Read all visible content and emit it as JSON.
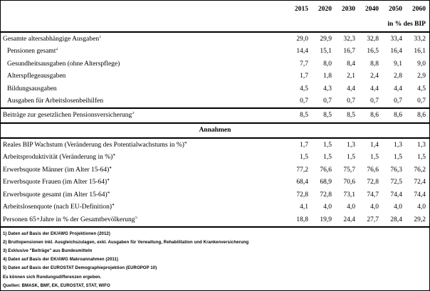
{
  "header": {
    "years": [
      "2015",
      "2020",
      "2030",
      "2040",
      "2050",
      "2060"
    ],
    "unit_label": "in % des BIP"
  },
  "expenditure_rows": [
    {
      "label": "Gesamte altersabhängige Ausgaben",
      "sup": "1",
      "indent": false,
      "values": [
        "29,0",
        "29,9",
        "32,3",
        "32,8",
        "33,4",
        "33,2"
      ]
    },
    {
      "label": "Pensionen gesamt",
      "sup": "2",
      "indent": true,
      "values": [
        "14,4",
        "15,1",
        "16,7",
        "16,5",
        "16,4",
        "16,1"
      ]
    },
    {
      "label": "Gesundheitsausgaben (ohne Alterspflege)",
      "sup": "",
      "indent": true,
      "values": [
        "7,7",
        "8,0",
        "8,4",
        "8,8",
        "9,1",
        "9,0"
      ]
    },
    {
      "label": "Alterspflegeausgaben",
      "sup": "",
      "indent": true,
      "values": [
        "1,7",
        "1,8",
        "2,1",
        "2,4",
        "2,8",
        "2,9"
      ]
    },
    {
      "label": "Bildungsausgaben",
      "sup": "",
      "indent": true,
      "values": [
        "4,5",
        "4,3",
        "4,4",
        "4,4",
        "4,4",
        "4,5"
      ]
    },
    {
      "label": "Ausgaben für Arbeitslosenbeihilfen",
      "sup": "",
      "indent": true,
      "values": [
        "0,7",
        "0,7",
        "0,7",
        "0,7",
        "0,7",
        "0,7"
      ]
    }
  ],
  "contribution_row": {
    "label": "Beiträge zur gesetzlichen Pensionsversicherung",
    "sup": "3",
    "indent": false,
    "values": [
      "8,5",
      "8,5",
      "8,5",
      "8,6",
      "8,6",
      "8,6"
    ]
  },
  "assumptions": {
    "section_title": "Annahmen",
    "rows": [
      {
        "label": "Reales BIP Wachstum (Veränderung des Potentialwachstums in %)",
        "sup": "4",
        "indent": false,
        "values": [
          "1,7",
          "1,5",
          "1,3",
          "1,4",
          "1,3",
          "1,3"
        ]
      },
      {
        "label": "Arbeitsproduktivität (Veränderung in %)",
        "sup": "4",
        "indent": false,
        "values": [
          "1,5",
          "1,5",
          "1,5",
          "1,5",
          "1,5",
          "1,5"
        ]
      },
      {
        "label": "Erwerbsquote Männer (im Alter 15-64)",
        "sup": "4",
        "indent": false,
        "values": [
          "77,2",
          "76,6",
          "75,7",
          "76,6",
          "76,3",
          "76,2"
        ]
      },
      {
        "label": "Erwerbsquote Frauen (im Alter 15-64)",
        "sup": "4",
        "indent": false,
        "values": [
          "68,4",
          "68,9",
          "70,6",
          "72,8",
          "72,5",
          "72,4"
        ]
      },
      {
        "label": "Erwerbsquote gesamt (im Alter 15-64)",
        "sup": "4",
        "indent": false,
        "values": [
          "72,8",
          "72,8",
          "73,1",
          "74,7",
          "74,4",
          "74,4"
        ]
      },
      {
        "label": "Arbeitslosenquote (nach EU-Definition)",
        "sup": "4",
        "indent": false,
        "values": [
          "4,1",
          "4,0",
          "4,0",
          "4,0",
          "4,0",
          "4,0"
        ]
      },
      {
        "label": "Personen 65+Jahre in % der Gesamtbevölkerung",
        "sup": "5",
        "indent": false,
        "values": [
          "18,8",
          "19,9",
          "24,4",
          "27,7",
          "28,4",
          "29,2"
        ]
      }
    ]
  },
  "footnotes": [
    "1) Daten auf Basis der EK/AWG Projektionen (2012)",
    "2) Bruttopensionen inkl. Ausgleichszulagen, exkl. Ausgaben für Verwaltung, Rehabilitation und Krankenversicherung",
    "3) Exklusive \"Beiträge\" aus Bundesmitteln",
    "4) Daten auf Basis der EK/AWG Makroannahmen (2011)",
    "5) Daten auf Basis der EUROSTAT Demographieprojektion (EUROPOP 10)",
    "Es können sich Rundungsdifferenzen ergeben.",
    "Quellen: BMASK, BMF, EK, EUROSTAT, STAT, WIFO"
  ]
}
